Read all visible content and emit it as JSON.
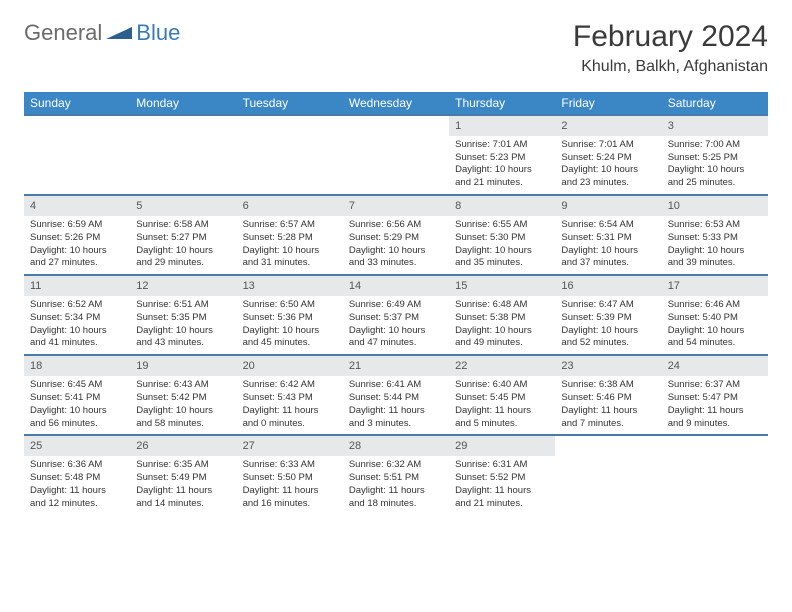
{
  "logo": {
    "part1": "General",
    "part2": "Blue"
  },
  "title": "February 2024",
  "location": "Khulm, Balkh, Afghanistan",
  "weekdays": [
    "Sunday",
    "Monday",
    "Tuesday",
    "Wednesday",
    "Thursday",
    "Friday",
    "Saturday"
  ],
  "colors": {
    "header_bg": "#3b86c4",
    "header_text": "#ffffff",
    "row_border": "#4a7ba8",
    "daynum_bg": "#e7e8e9",
    "logo_blue": "#3b7ab5",
    "logo_gray": "#6b6b6b"
  },
  "weeks": [
    [
      {
        "empty": true
      },
      {
        "empty": true
      },
      {
        "empty": true
      },
      {
        "empty": true
      },
      {
        "day": "1",
        "sunrise": "Sunrise: 7:01 AM",
        "sunset": "Sunset: 5:23 PM",
        "daylight": "Daylight: 10 hours and 21 minutes."
      },
      {
        "day": "2",
        "sunrise": "Sunrise: 7:01 AM",
        "sunset": "Sunset: 5:24 PM",
        "daylight": "Daylight: 10 hours and 23 minutes."
      },
      {
        "day": "3",
        "sunrise": "Sunrise: 7:00 AM",
        "sunset": "Sunset: 5:25 PM",
        "daylight": "Daylight: 10 hours and 25 minutes."
      }
    ],
    [
      {
        "day": "4",
        "sunrise": "Sunrise: 6:59 AM",
        "sunset": "Sunset: 5:26 PM",
        "daylight": "Daylight: 10 hours and 27 minutes."
      },
      {
        "day": "5",
        "sunrise": "Sunrise: 6:58 AM",
        "sunset": "Sunset: 5:27 PM",
        "daylight": "Daylight: 10 hours and 29 minutes."
      },
      {
        "day": "6",
        "sunrise": "Sunrise: 6:57 AM",
        "sunset": "Sunset: 5:28 PM",
        "daylight": "Daylight: 10 hours and 31 minutes."
      },
      {
        "day": "7",
        "sunrise": "Sunrise: 6:56 AM",
        "sunset": "Sunset: 5:29 PM",
        "daylight": "Daylight: 10 hours and 33 minutes."
      },
      {
        "day": "8",
        "sunrise": "Sunrise: 6:55 AM",
        "sunset": "Sunset: 5:30 PM",
        "daylight": "Daylight: 10 hours and 35 minutes."
      },
      {
        "day": "9",
        "sunrise": "Sunrise: 6:54 AM",
        "sunset": "Sunset: 5:31 PM",
        "daylight": "Daylight: 10 hours and 37 minutes."
      },
      {
        "day": "10",
        "sunrise": "Sunrise: 6:53 AM",
        "sunset": "Sunset: 5:33 PM",
        "daylight": "Daylight: 10 hours and 39 minutes."
      }
    ],
    [
      {
        "day": "11",
        "sunrise": "Sunrise: 6:52 AM",
        "sunset": "Sunset: 5:34 PM",
        "daylight": "Daylight: 10 hours and 41 minutes."
      },
      {
        "day": "12",
        "sunrise": "Sunrise: 6:51 AM",
        "sunset": "Sunset: 5:35 PM",
        "daylight": "Daylight: 10 hours and 43 minutes."
      },
      {
        "day": "13",
        "sunrise": "Sunrise: 6:50 AM",
        "sunset": "Sunset: 5:36 PM",
        "daylight": "Daylight: 10 hours and 45 minutes."
      },
      {
        "day": "14",
        "sunrise": "Sunrise: 6:49 AM",
        "sunset": "Sunset: 5:37 PM",
        "daylight": "Daylight: 10 hours and 47 minutes."
      },
      {
        "day": "15",
        "sunrise": "Sunrise: 6:48 AM",
        "sunset": "Sunset: 5:38 PM",
        "daylight": "Daylight: 10 hours and 49 minutes."
      },
      {
        "day": "16",
        "sunrise": "Sunrise: 6:47 AM",
        "sunset": "Sunset: 5:39 PM",
        "daylight": "Daylight: 10 hours and 52 minutes."
      },
      {
        "day": "17",
        "sunrise": "Sunrise: 6:46 AM",
        "sunset": "Sunset: 5:40 PM",
        "daylight": "Daylight: 10 hours and 54 minutes."
      }
    ],
    [
      {
        "day": "18",
        "sunrise": "Sunrise: 6:45 AM",
        "sunset": "Sunset: 5:41 PM",
        "daylight": "Daylight: 10 hours and 56 minutes."
      },
      {
        "day": "19",
        "sunrise": "Sunrise: 6:43 AM",
        "sunset": "Sunset: 5:42 PM",
        "daylight": "Daylight: 10 hours and 58 minutes."
      },
      {
        "day": "20",
        "sunrise": "Sunrise: 6:42 AM",
        "sunset": "Sunset: 5:43 PM",
        "daylight": "Daylight: 11 hours and 0 minutes."
      },
      {
        "day": "21",
        "sunrise": "Sunrise: 6:41 AM",
        "sunset": "Sunset: 5:44 PM",
        "daylight": "Daylight: 11 hours and 3 minutes."
      },
      {
        "day": "22",
        "sunrise": "Sunrise: 6:40 AM",
        "sunset": "Sunset: 5:45 PM",
        "daylight": "Daylight: 11 hours and 5 minutes."
      },
      {
        "day": "23",
        "sunrise": "Sunrise: 6:38 AM",
        "sunset": "Sunset: 5:46 PM",
        "daylight": "Daylight: 11 hours and 7 minutes."
      },
      {
        "day": "24",
        "sunrise": "Sunrise: 6:37 AM",
        "sunset": "Sunset: 5:47 PM",
        "daylight": "Daylight: 11 hours and 9 minutes."
      }
    ],
    [
      {
        "day": "25",
        "sunrise": "Sunrise: 6:36 AM",
        "sunset": "Sunset: 5:48 PM",
        "daylight": "Daylight: 11 hours and 12 minutes."
      },
      {
        "day": "26",
        "sunrise": "Sunrise: 6:35 AM",
        "sunset": "Sunset: 5:49 PM",
        "daylight": "Daylight: 11 hours and 14 minutes."
      },
      {
        "day": "27",
        "sunrise": "Sunrise: 6:33 AM",
        "sunset": "Sunset: 5:50 PM",
        "daylight": "Daylight: 11 hours and 16 minutes."
      },
      {
        "day": "28",
        "sunrise": "Sunrise: 6:32 AM",
        "sunset": "Sunset: 5:51 PM",
        "daylight": "Daylight: 11 hours and 18 minutes."
      },
      {
        "day": "29",
        "sunrise": "Sunrise: 6:31 AM",
        "sunset": "Sunset: 5:52 PM",
        "daylight": "Daylight: 11 hours and 21 minutes."
      },
      {
        "empty": true
      },
      {
        "empty": true
      }
    ]
  ]
}
